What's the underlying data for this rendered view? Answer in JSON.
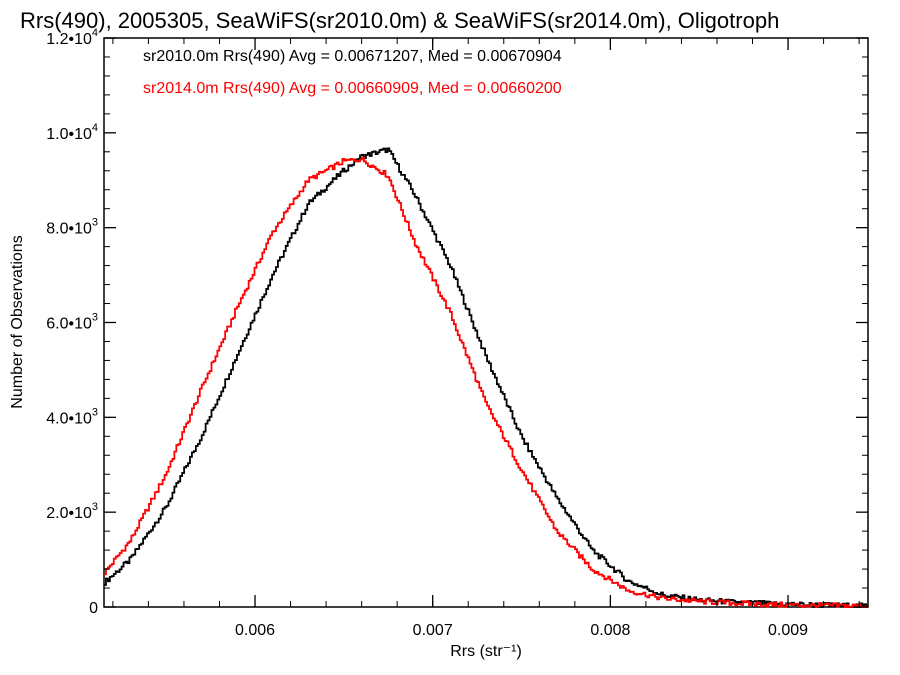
{
  "chart_data": {
    "type": "line",
    "title": "Rrs(490), 2005305, SeaWiFS(sr2010.0m) & SeaWiFS(sr2014.0m), Oligotroph",
    "xlabel": "Rrs (str⁻¹)",
    "ylabel": "Number of Observations",
    "xlim": [
      0.00515,
      0.00945
    ],
    "ylim": [
      0,
      12000
    ],
    "xticks": [
      {
        "value": 0.006,
        "label": "0.006"
      },
      {
        "value": 0.007,
        "label": "0.007"
      },
      {
        "value": 0.008,
        "label": "0.008"
      },
      {
        "value": 0.009,
        "label": "0.009"
      }
    ],
    "yticks": [
      {
        "value": 0,
        "base": "0",
        "exp": ""
      },
      {
        "value": 2000,
        "base": "2.0•10",
        "exp": "3"
      },
      {
        "value": 4000,
        "base": "4.0•10",
        "exp": "3"
      },
      {
        "value": 6000,
        "base": "6.0•10",
        "exp": "3"
      },
      {
        "value": 8000,
        "base": "8.0•10",
        "exp": "3"
      },
      {
        "value": 10000,
        "base": "1.0•10",
        "exp": "4"
      },
      {
        "value": 12000,
        "base": "1.2•10",
        "exp": "4"
      }
    ],
    "grid": false,
    "legend": "top-left",
    "series": [
      {
        "name": "sr2010.0m",
        "label": "sr2010.0m Rrs(490) Avg = 0.00671207, Med = 0.00670904",
        "color": "#000000",
        "x": [
          0.00515,
          0.0053,
          0.0055,
          0.0057,
          0.0059,
          0.0061,
          0.0063,
          0.0065,
          0.0066,
          0.00675,
          0.0069,
          0.0071,
          0.0073,
          0.0075,
          0.0077,
          0.0079,
          0.0081,
          0.0083,
          0.0085,
          0.0087,
          0.0089,
          0.0091,
          0.0093,
          0.00945
        ],
        "y": [
          500,
          1000,
          2100,
          3600,
          5300,
          7000,
          8500,
          9200,
          9500,
          9650,
          8700,
          7200,
          5300,
          3600,
          2300,
          1200,
          550,
          250,
          150,
          100,
          70,
          50,
          30,
          20
        ]
      },
      {
        "name": "sr2014.0m",
        "label": "sr2014.0m Rrs(490) Avg = 0.00660909, Med = 0.00660200",
        "color": "#ff0000",
        "x": [
          0.00515,
          0.0053,
          0.0055,
          0.0057,
          0.0059,
          0.0061,
          0.0063,
          0.0065,
          0.0066,
          0.00675,
          0.0069,
          0.0071,
          0.0073,
          0.0075,
          0.0077,
          0.0079,
          0.0081,
          0.0083,
          0.0085,
          0.0087,
          0.0089,
          0.0091,
          0.0093,
          0.00945
        ],
        "y": [
          700,
          1400,
          2800,
          4600,
          6300,
          7900,
          9000,
          9400,
          9450,
          9100,
          7700,
          6200,
          4300,
          2900,
          1600,
          800,
          350,
          180,
          120,
          80,
          50,
          35,
          25,
          15
        ]
      }
    ]
  }
}
